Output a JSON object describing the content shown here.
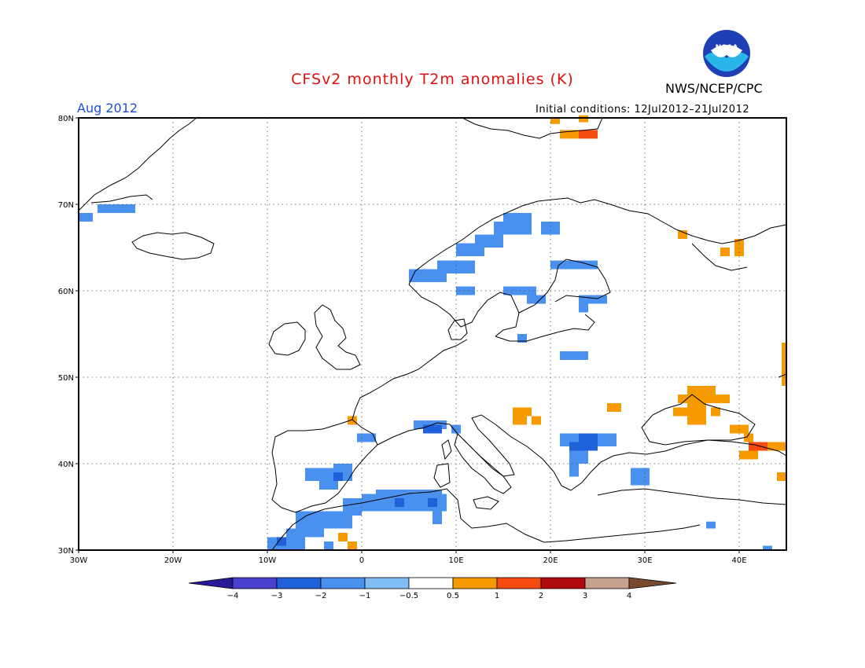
{
  "title": "CFSv2 monthly T2m anomalies (K)",
  "agency": "NWS/NCEP/CPC",
  "logo": {
    "name": "noaa-logo",
    "text": "NOAA"
  },
  "month_label": "Aug 2012",
  "initial_conditions": "Initial conditions: 12Jul2012–21Jul2012",
  "map": {
    "extent": {
      "lon": [
        -30,
        45
      ],
      "lat": [
        30,
        80
      ]
    },
    "grid": "dotted",
    "lat_labels": [
      "80N",
      "70N",
      "60N",
      "50N",
      "40N",
      "30N"
    ],
    "lat_values": [
      80,
      70,
      60,
      50,
      40,
      30
    ],
    "lon_labels": [
      "30W",
      "20W",
      "10W",
      "0",
      "10E",
      "20E",
      "30E",
      "40E"
    ],
    "lon_values": [
      -30,
      -20,
      -10,
      0,
      10,
      20,
      30,
      40
    ]
  },
  "colorbar": {
    "colors": [
      "#2a1a9a",
      "#4a3fcf",
      "#2060d8",
      "#4a90ef",
      "#80bdf5",
      "#ffffff",
      "#f59a00",
      "#f54a10",
      "#b00a0a",
      "#c8a090",
      "#7a4a30"
    ],
    "labels": [
      "−4",
      "−3",
      "−2",
      "−1",
      "−0.5",
      "0.5",
      "1",
      "2",
      "3",
      "4"
    ]
  },
  "anomaly_cells": [
    {
      "lon": -30,
      "lat": 68,
      "w": 1.5,
      "h": 1,
      "cat": 3
    },
    {
      "lon": -28,
      "lat": 69,
      "w": 4,
      "h": 1,
      "cat": 3
    },
    {
      "lon": -20,
      "lat": 76.5,
      "w": 1,
      "h": 1,
      "cat": 5
    },
    {
      "lon": 5,
      "lat": 61,
      "w": 4,
      "h": 1.5,
      "cat": 3
    },
    {
      "lon": 8,
      "lat": 62,
      "w": 4,
      "h": 1.5,
      "cat": 3
    },
    {
      "lon": 10,
      "lat": 64,
      "w": 3,
      "h": 1.5,
      "cat": 3
    },
    {
      "lon": 12,
      "lat": 65,
      "w": 3,
      "h": 1.5,
      "cat": 3
    },
    {
      "lon": 14,
      "lat": 66.5,
      "w": 4,
      "h": 1.5,
      "cat": 3
    },
    {
      "lon": 15,
      "lat": 68,
      "w": 3,
      "h": 1,
      "cat": 3
    },
    {
      "lon": 19,
      "lat": 66.5,
      "w": 2,
      "h": 1.5,
      "cat": 3
    },
    {
      "lon": 20,
      "lat": 62.5,
      "w": 5,
      "h": 1,
      "cat": 3
    },
    {
      "lon": 10,
      "lat": 59.5,
      "w": 2,
      "h": 1,
      "cat": 3
    },
    {
      "lon": 15,
      "lat": 59.5,
      "w": 3.5,
      "h": 1,
      "cat": 3
    },
    {
      "lon": 17.5,
      "lat": 58.5,
      "w": 2,
      "h": 1,
      "cat": 3
    },
    {
      "lon": 23,
      "lat": 58.5,
      "w": 3,
      "h": 1,
      "cat": 3
    },
    {
      "lon": 23,
      "lat": 57.5,
      "w": 1,
      "h": 1,
      "cat": 3
    },
    {
      "lon": 16.5,
      "lat": 54,
      "w": 1,
      "h": 1,
      "cat": 3
    },
    {
      "lon": 21,
      "lat": 52,
      "w": 3,
      "h": 1,
      "cat": 3
    },
    {
      "lon": 5.5,
      "lat": 44,
      "w": 3.5,
      "h": 1,
      "cat": 3
    },
    {
      "lon": 6.5,
      "lat": 43.5,
      "w": 2,
      "h": 1,
      "cat": 2
    },
    {
      "lon": 9.5,
      "lat": 43.5,
      "w": 1,
      "h": 1,
      "cat": 3
    },
    {
      "lon": -0.5,
      "lat": 42.5,
      "w": 2,
      "h": 1,
      "cat": 3
    },
    {
      "lon": 21,
      "lat": 42,
      "w": 6,
      "h": 1.5,
      "cat": 3
    },
    {
      "lon": 23,
      "lat": 42.5,
      "w": 2,
      "h": 1,
      "cat": 2
    },
    {
      "lon": 22,
      "lat": 41.5,
      "w": 3,
      "h": 1,
      "cat": 2
    },
    {
      "lon": 22,
      "lat": 40,
      "w": 2,
      "h": 1.5,
      "cat": 3
    },
    {
      "lon": 22,
      "lat": 38.5,
      "w": 1,
      "h": 1.5,
      "cat": 3
    },
    {
      "lon": 28.5,
      "lat": 37.5,
      "w": 2,
      "h": 2,
      "cat": 3
    },
    {
      "lon": -6,
      "lat": 38,
      "w": 3,
      "h": 1.5,
      "cat": 3
    },
    {
      "lon": -3,
      "lat": 38,
      "w": 2,
      "h": 2,
      "cat": 3
    },
    {
      "lon": -4.5,
      "lat": 37,
      "w": 2,
      "h": 1,
      "cat": 3
    },
    {
      "lon": -3,
      "lat": 38,
      "w": 1,
      "h": 1,
      "cat": 2
    },
    {
      "lon": -7,
      "lat": 32.5,
      "w": 6,
      "h": 2,
      "cat": 3
    },
    {
      "lon": -8,
      "lat": 31.5,
      "w": 4,
      "h": 1,
      "cat": 3
    },
    {
      "lon": -10,
      "lat": 30,
      "w": 4,
      "h": 1.5,
      "cat": 3
    },
    {
      "lon": -9,
      "lat": 30.5,
      "w": 1,
      "h": 1,
      "cat": 2
    },
    {
      "lon": -4,
      "lat": 30,
      "w": 1,
      "h": 1,
      "cat": 3
    },
    {
      "lon": -2,
      "lat": 34,
      "w": 2,
      "h": 2,
      "cat": 3
    },
    {
      "lon": 0,
      "lat": 34.5,
      "w": 9,
      "h": 2,
      "cat": 3
    },
    {
      "lon": 1.5,
      "lat": 35.5,
      "w": 7,
      "h": 1.5,
      "cat": 3
    },
    {
      "lon": 7.5,
      "lat": 33,
      "w": 1,
      "h": 1.5,
      "cat": 3
    },
    {
      "lon": 3.5,
      "lat": 35,
      "w": 1,
      "h": 1,
      "cat": 2
    },
    {
      "lon": 7,
      "lat": 35,
      "w": 1,
      "h": 1,
      "cat": 2
    },
    {
      "lon": 42.5,
      "lat": 30,
      "w": 1,
      "h": 0.5,
      "cat": 3
    },
    {
      "lon": 36.5,
      "lat": 32.5,
      "w": 1,
      "h": 0.8,
      "cat": 3
    },
    {
      "lon": 20,
      "lat": 79.3,
      "w": 1,
      "h": 0.8,
      "cat": 6
    },
    {
      "lon": 23,
      "lat": 79.5,
      "w": 1,
      "h": 0.8,
      "cat": 6
    },
    {
      "lon": 21,
      "lat": 77.6,
      "w": 2,
      "h": 1,
      "cat": 6
    },
    {
      "lon": 23,
      "lat": 77.6,
      "w": 2,
      "h": 1,
      "cat": 7
    },
    {
      "lon": 33.5,
      "lat": 66,
      "w": 1,
      "h": 1,
      "cat": 6
    },
    {
      "lon": 38,
      "lat": 64,
      "w": 1,
      "h": 1,
      "cat": 6
    },
    {
      "lon": 39.5,
      "lat": 64,
      "w": 1,
      "h": 2,
      "cat": 6
    },
    {
      "lon": 44.5,
      "lat": 49,
      "w": 0.6,
      "h": 5,
      "cat": 6
    },
    {
      "lon": 33.5,
      "lat": 47,
      "w": 5.5,
      "h": 1,
      "cat": 6
    },
    {
      "lon": 34.5,
      "lat": 48,
      "w": 3,
      "h": 1,
      "cat": 6
    },
    {
      "lon": 34.5,
      "lat": 44.5,
      "w": 2,
      "h": 2.5,
      "cat": 6
    },
    {
      "lon": 33,
      "lat": 45.5,
      "w": 2,
      "h": 1,
      "cat": 6
    },
    {
      "lon": 37,
      "lat": 45.5,
      "w": 1,
      "h": 1,
      "cat": 6
    },
    {
      "lon": 39,
      "lat": 43.5,
      "w": 2,
      "h": 1,
      "cat": 6
    },
    {
      "lon": 40.5,
      "lat": 42.5,
      "w": 1,
      "h": 1,
      "cat": 6
    },
    {
      "lon": 41,
      "lat": 41.5,
      "w": 2,
      "h": 1,
      "cat": 7
    },
    {
      "lon": 43,
      "lat": 41.5,
      "w": 2,
      "h": 1,
      "cat": 6
    },
    {
      "lon": 40,
      "lat": 40.5,
      "w": 2,
      "h": 1,
      "cat": 6
    },
    {
      "lon": 44,
      "lat": 38,
      "w": 1,
      "h": 1,
      "cat": 6
    },
    {
      "lon": 16,
      "lat": 45.5,
      "w": 2,
      "h": 1,
      "cat": 6
    },
    {
      "lon": 16,
      "lat": 44.5,
      "w": 1.5,
      "h": 1,
      "cat": 6
    },
    {
      "lon": 18,
      "lat": 44.5,
      "w": 1,
      "h": 1,
      "cat": 6
    },
    {
      "lon": 26,
      "lat": 46,
      "w": 1.5,
      "h": 1,
      "cat": 6
    },
    {
      "lon": -1.5,
      "lat": 44.5,
      "w": 1,
      "h": 1,
      "cat": 6
    },
    {
      "lon": -2.5,
      "lat": 31,
      "w": 1,
      "h": 1,
      "cat": 6
    },
    {
      "lon": -1.5,
      "lat": 30,
      "w": 1,
      "h": 1,
      "cat": 6
    }
  ]
}
